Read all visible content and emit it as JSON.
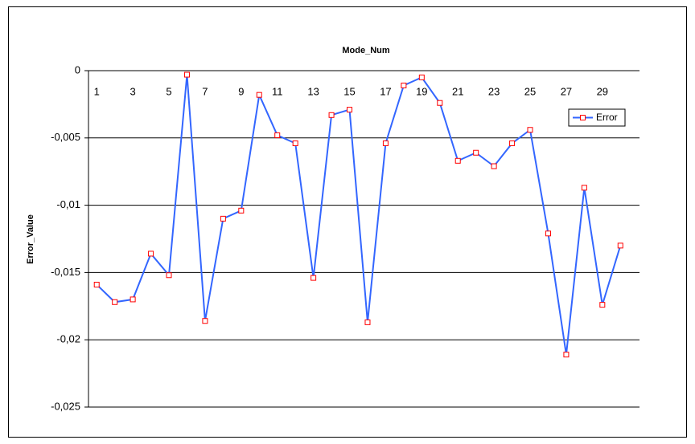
{
  "chart_data": {
    "type": "line",
    "title": "Mode_Num",
    "y_label": "Error_Value",
    "categories": [
      "1",
      null,
      "3",
      null,
      "5",
      null,
      "7",
      null,
      "9",
      null,
      "11",
      null,
      "13",
      null,
      "15",
      null,
      "17",
      null,
      "19",
      null,
      "21",
      null,
      "23",
      null,
      "25",
      null,
      "27",
      null,
      "29",
      null
    ],
    "series": [
      {
        "name": "Error",
        "color": "#3366ff",
        "marker_color": "#ff0000",
        "values": [
          -0.0159,
          -0.0172,
          -0.017,
          -0.0136,
          -0.0152,
          -0.0003,
          -0.0186,
          -0.011,
          -0.0104,
          -0.0018,
          -0.0048,
          -0.0054,
          -0.0154,
          -0.0033,
          -0.0029,
          -0.0187,
          -0.0054,
          -0.0011,
          -0.0005,
          -0.0024,
          -0.0067,
          -0.0061,
          -0.0071,
          -0.0054,
          -0.0044,
          -0.0121,
          -0.0211,
          -0.0087,
          -0.0174,
          -0.013
        ]
      }
    ],
    "ylim": [
      -0.025,
      0
    ],
    "yticks": [
      0,
      {
        "value": -0.005,
        "label": "-0,005"
      },
      {
        "value": -0.01,
        "label": "-0,01"
      },
      {
        "value": -0.015,
        "label": "-0,015"
      },
      {
        "value": -0.02,
        "label": "-0,02"
      },
      {
        "value": -0.025,
        "label": "-0,025"
      }
    ],
    "grid": true,
    "legend": "upper right"
  }
}
